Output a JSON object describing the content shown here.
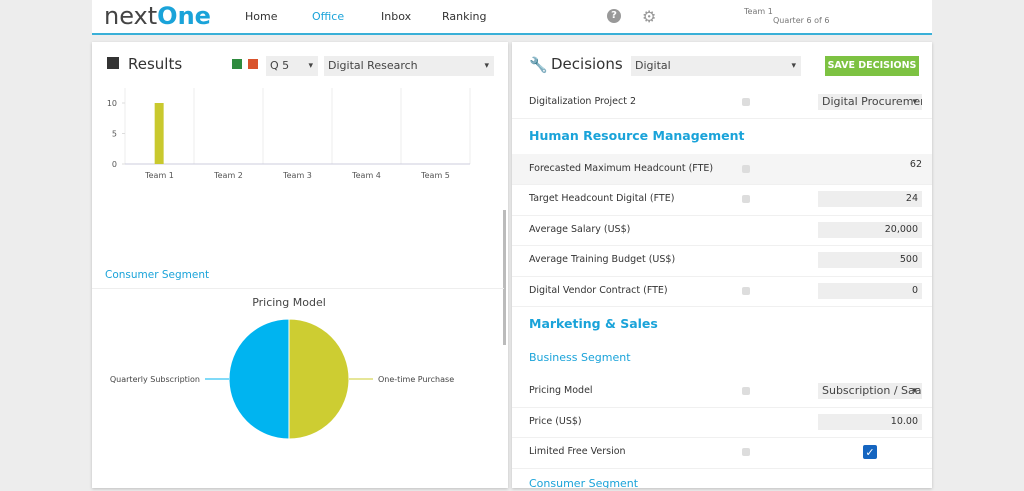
{
  "header": {
    "logo_left": "next",
    "logo_right": "One",
    "nav": [
      "Home",
      "Office",
      "Inbox",
      "Ranking"
    ],
    "active_nav": 1,
    "team": "Team 1",
    "quarter": "Quarter 6 of 6"
  },
  "results": {
    "title": "Results",
    "quarter_select": "Q 5",
    "area_select": "Digital Research",
    "segment": "Consumer Segment"
  },
  "chart_data": [
    {
      "type": "bar",
      "categories": [
        "Team 1",
        "Team 2",
        "Team 3",
        "Team 4",
        "Team 5"
      ],
      "values": [
        10,
        0,
        0,
        0,
        0
      ],
      "color": "#c9c92e",
      "ylim": [
        0,
        10
      ],
      "yticks": [
        0,
        5,
        10
      ],
      "grid": false
    },
    {
      "type": "pie",
      "title": "Pricing Model",
      "categories": [
        "One-time Purchase",
        "Quarterly Subscription"
      ],
      "values": [
        50,
        50
      ],
      "colors": [
        "#cdcd32",
        "#00b4f0"
      ]
    }
  ],
  "decisions": {
    "title": "Decisions",
    "area_select": "Digital",
    "save": "SAVE DECISIONS",
    "items": [
      {
        "kind": "row",
        "label": "Digitalization Project 2",
        "info": true,
        "control": "select",
        "value": "Digital Procuremen"
      },
      {
        "kind": "section",
        "label": "Human Resource Management"
      },
      {
        "kind": "row",
        "label": "Forecasted Maximum Headcount (FTE)",
        "info": true,
        "control": "text",
        "value": "62"
      },
      {
        "kind": "row",
        "label": "Target Headcount Digital (FTE)",
        "info": true,
        "control": "input",
        "value": "24"
      },
      {
        "kind": "row",
        "label": "Average Salary (US$)",
        "info": false,
        "control": "input",
        "value": "20,000"
      },
      {
        "kind": "row",
        "label": "Average Training Budget (US$)",
        "info": false,
        "control": "input",
        "value": "500"
      },
      {
        "kind": "row",
        "label": "Digital Vendor Contract (FTE)",
        "info": true,
        "control": "input",
        "value": "0"
      },
      {
        "kind": "section",
        "label": "Marketing & Sales"
      },
      {
        "kind": "subsection",
        "label": "Business Segment"
      },
      {
        "kind": "row",
        "label": "Pricing Model",
        "info": true,
        "control": "select",
        "value": "Subscription / Saa"
      },
      {
        "kind": "row",
        "label": "Price (US$)",
        "info": false,
        "control": "input",
        "value": "10.00"
      },
      {
        "kind": "row",
        "label": "Limited Free Version",
        "info": true,
        "control": "checkbox",
        "value": true
      },
      {
        "kind": "subsection",
        "label": "Consumer Segment"
      }
    ]
  }
}
